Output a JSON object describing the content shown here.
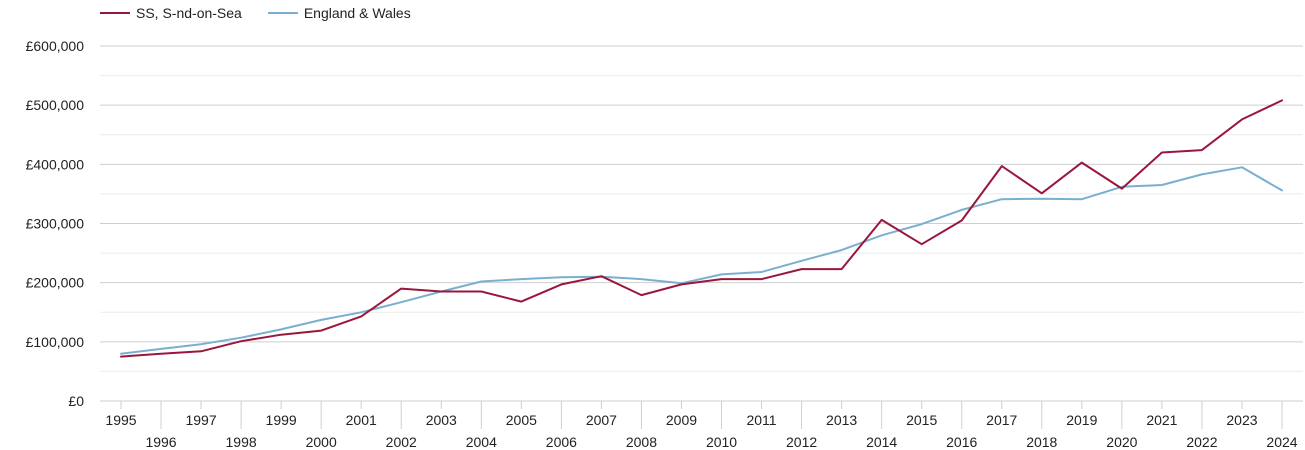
{
  "chart_data": {
    "type": "line",
    "title": "",
    "xlabel": "",
    "ylabel": "",
    "x": [
      1995,
      1996,
      1997,
      1998,
      1999,
      2000,
      2001,
      2002,
      2003,
      2004,
      2005,
      2006,
      2007,
      2008,
      2009,
      2010,
      2011,
      2012,
      2013,
      2014,
      2015,
      2016,
      2017,
      2018,
      2019,
      2020,
      2021,
      2022,
      2023,
      2024
    ],
    "ylim": [
      0,
      600000
    ],
    "y_ticks": [
      0,
      100000,
      200000,
      300000,
      400000,
      500000,
      600000
    ],
    "y_tick_labels": [
      "£0",
      "£100,000",
      "£200,000",
      "£300,000",
      "£400,000",
      "£500,000",
      "£600,000"
    ],
    "grid": true,
    "legend_position": "top-left",
    "series": [
      {
        "name": "SS, S-nd-on-Sea",
        "color": "#99173c",
        "values": [
          75000,
          80000,
          84000,
          101000,
          112000,
          119000,
          143000,
          190000,
          185000,
          185000,
          168000,
          197000,
          211000,
          179000,
          197000,
          206000,
          206000,
          223000,
          223000,
          306000,
          265000,
          305000,
          397000,
          351000,
          403000,
          359000,
          420000,
          424000,
          476000,
          508000
        ]
      },
      {
        "name": "England & Wales",
        "color": "#7aafd0",
        "values": [
          80000,
          88000,
          96000,
          107000,
          121000,
          137000,
          150000,
          167000,
          185000,
          202000,
          206000,
          209000,
          210000,
          206000,
          199000,
          214000,
          218000,
          237000,
          255000,
          280000,
          299000,
          323000,
          341000,
          342000,
          341000,
          362000,
          365000,
          383000,
          395000,
          356000
        ]
      }
    ]
  }
}
